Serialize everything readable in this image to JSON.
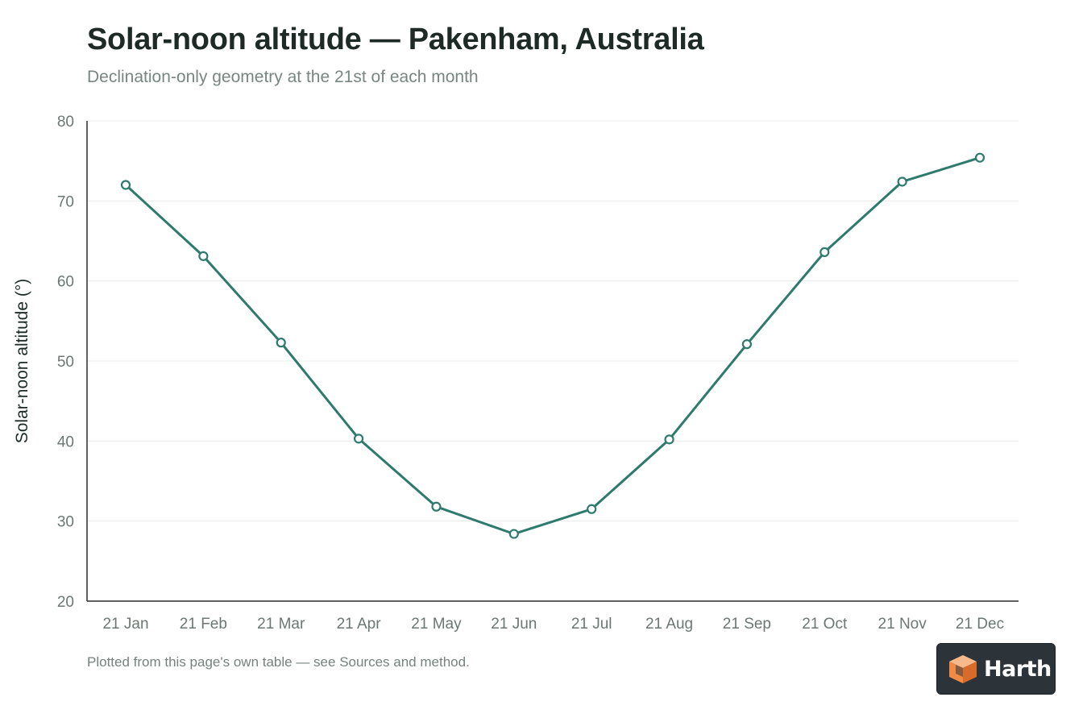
{
  "header": {
    "title": "Solar-noon altitude — Pakenham, Australia",
    "subtitle": "Declination-only geometry at the 21st of each month"
  },
  "footer": {
    "note": "Plotted from this page's own table — see Sources and method.",
    "brand": "Harth"
  },
  "colors": {
    "series": "#2e7a6d",
    "grid": "#e9ecea",
    "axis": "#2b2f2d"
  },
  "chart_data": {
    "type": "line",
    "title": "Solar-noon altitude — Pakenham, Australia",
    "subtitle": "Declination-only geometry at the 21st of each month",
    "xlabel": "",
    "ylabel": "Solar-noon altitude (°)",
    "categories": [
      "21 Jan",
      "21 Feb",
      "21 Mar",
      "21 Apr",
      "21 May",
      "21 Jun",
      "21 Jul",
      "21 Aug",
      "21 Sep",
      "21 Oct",
      "21 Nov",
      "21 Dec"
    ],
    "series": [
      {
        "values": [
          72.0,
          63.1,
          52.3,
          40.3,
          31.8,
          28.4,
          31.5,
          40.2,
          52.1,
          63.6,
          72.4,
          75.4
        ]
      }
    ],
    "ylim": [
      20,
      80
    ],
    "yticks": [
      20,
      30,
      40,
      50,
      60,
      70,
      80
    ],
    "grid": true,
    "legend": "none",
    "markers": "hollow-circle"
  }
}
